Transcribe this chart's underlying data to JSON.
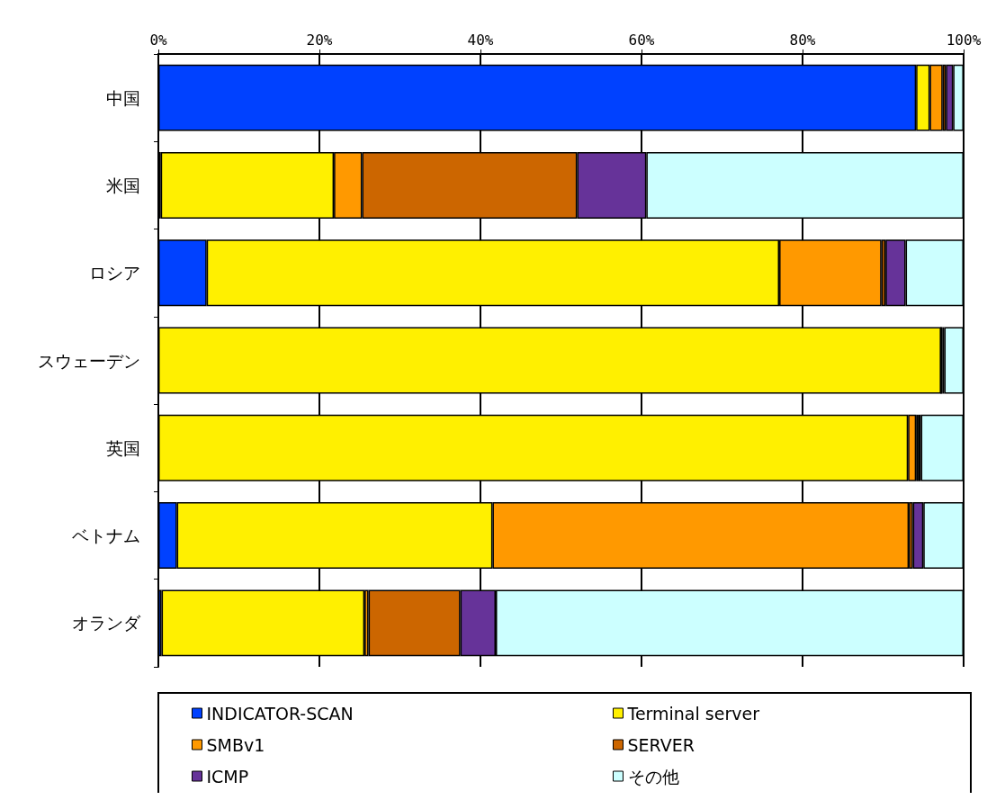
{
  "chart_data": {
    "type": "bar",
    "orientation": "horizontal",
    "stacked": true,
    "categories": [
      "中国",
      "米国",
      "ロシア",
      "スウェーデン",
      "英国",
      "ベトナム",
      "オランダ"
    ],
    "series": [
      {
        "name": "INDICATOR-SCAN",
        "color": "#0041ff",
        "values": [
          94.1,
          0.3,
          6.0,
          0,
          0,
          2.3,
          0.4
        ]
      },
      {
        "name": "Terminal server",
        "color": "#fff000",
        "values": [
          1.7,
          21.5,
          71.1,
          97.2,
          93.1,
          39.2,
          25.2
        ]
      },
      {
        "name": "SMBv1",
        "color": "#ff9900",
        "values": [
          1.6,
          3.5,
          12.7,
          0,
          1.0,
          51.7,
          0.5
        ]
      },
      {
        "name": "SERVER",
        "color": "#cc6600",
        "values": [
          0.4,
          26.7,
          0.5,
          0.2,
          0.3,
          0.5,
          11.4
        ]
      },
      {
        "name": "ICMP",
        "color": "#663399",
        "values": [
          0.9,
          8.6,
          2.5,
          0.2,
          0.3,
          1.3,
          4.4
        ]
      },
      {
        "name": "その他",
        "color": "#ccffff",
        "values": [
          1.3,
          39.4,
          7.2,
          2.4,
          5.3,
          5.0,
          58.1
        ]
      }
    ],
    "xlim": [
      0,
      100
    ],
    "xticks": [
      {
        "value": 0,
        "label": "0%"
      },
      {
        "value": 20,
        "label": "20%"
      },
      {
        "value": 40,
        "label": "40%"
      },
      {
        "value": 60,
        "label": "60%"
      },
      {
        "value": 80,
        "label": "80%"
      },
      {
        "value": 100,
        "label": "100%"
      }
    ],
    "grid": "x",
    "legend": "bottom"
  }
}
